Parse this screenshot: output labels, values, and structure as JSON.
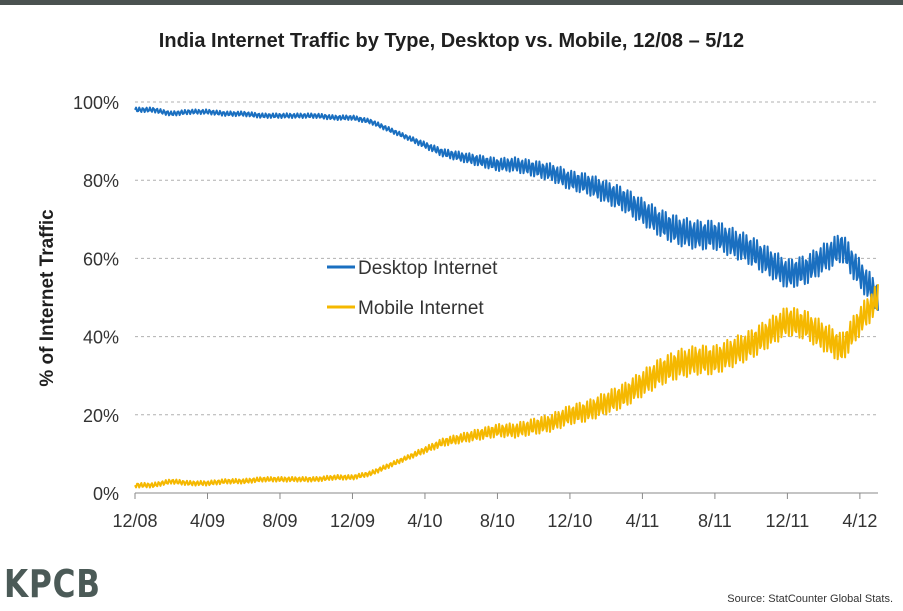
{
  "header": {
    "title": "India Internet Traffic by Type, Desktop vs. Mobile, 12/08 – 5/12"
  },
  "footer": {
    "logo_text": "KPCB",
    "source": "Source: StatCounter Global Stats."
  },
  "chart_data": {
    "type": "line",
    "title": "India Internet Traffic by Type, Desktop vs. Mobile, 12/08 – 5/12",
    "xlabel": "",
    "ylabel": "% of Internet Traffic",
    "ylim": [
      0,
      100
    ],
    "yticks": [
      "0%",
      "20%",
      "40%",
      "60%",
      "80%",
      "100%"
    ],
    "ytick_values": [
      0,
      20,
      40,
      60,
      80,
      100
    ],
    "xticks": [
      "12/08",
      "4/09",
      "8/09",
      "12/09",
      "4/10",
      "8/10",
      "12/10",
      "4/11",
      "8/11",
      "12/11",
      "4/12"
    ],
    "grid": "horizontal dashed",
    "legend_placement": "center",
    "x_unit": "month index from 12/08 (ticks every 4 months, data through 5/12)",
    "series": [
      {
        "name": "Desktop Internet",
        "color": "#1a6fc0",
        "x": [
          0,
          1,
          2,
          3,
          4,
          5,
          6,
          7,
          8,
          9,
          10,
          11,
          12,
          13,
          14,
          15,
          16,
          17,
          18,
          19,
          20,
          21,
          22,
          23,
          24,
          25,
          26,
          27,
          28,
          29,
          30,
          31,
          32,
          33,
          34,
          35,
          36,
          37,
          38,
          39,
          40,
          41
        ],
        "values": [
          98,
          98,
          97,
          97.5,
          97.5,
          97,
          97,
          96.5,
          96.5,
          96.5,
          96.5,
          96,
          96,
          95,
          93,
          91,
          89,
          87,
          86,
          85,
          84,
          84,
          83,
          82,
          80,
          79,
          77,
          75,
          72,
          69,
          67,
          66,
          66,
          64,
          62,
          59,
          56,
          57,
          60,
          63,
          56,
          50
        ]
      },
      {
        "name": "Mobile Internet",
        "color": "#f5b800",
        "x": [
          0,
          1,
          2,
          3,
          4,
          5,
          6,
          7,
          8,
          9,
          10,
          11,
          12,
          13,
          14,
          15,
          16,
          17,
          18,
          19,
          20,
          21,
          22,
          23,
          24,
          25,
          26,
          27,
          28,
          29,
          30,
          31,
          32,
          33,
          34,
          35,
          36,
          37,
          38,
          39,
          40,
          41
        ],
        "values": [
          2,
          2,
          3,
          2.5,
          2.5,
          3,
          3,
          3.5,
          3.5,
          3.5,
          3.5,
          4,
          4,
          5,
          7,
          9,
          11,
          13,
          14,
          15,
          16,
          16,
          17,
          18,
          20,
          21,
          23,
          25,
          28,
          31,
          33,
          34,
          34,
          36,
          38,
          41,
          44,
          43,
          40,
          37,
          44,
          50
        ]
      }
    ]
  }
}
